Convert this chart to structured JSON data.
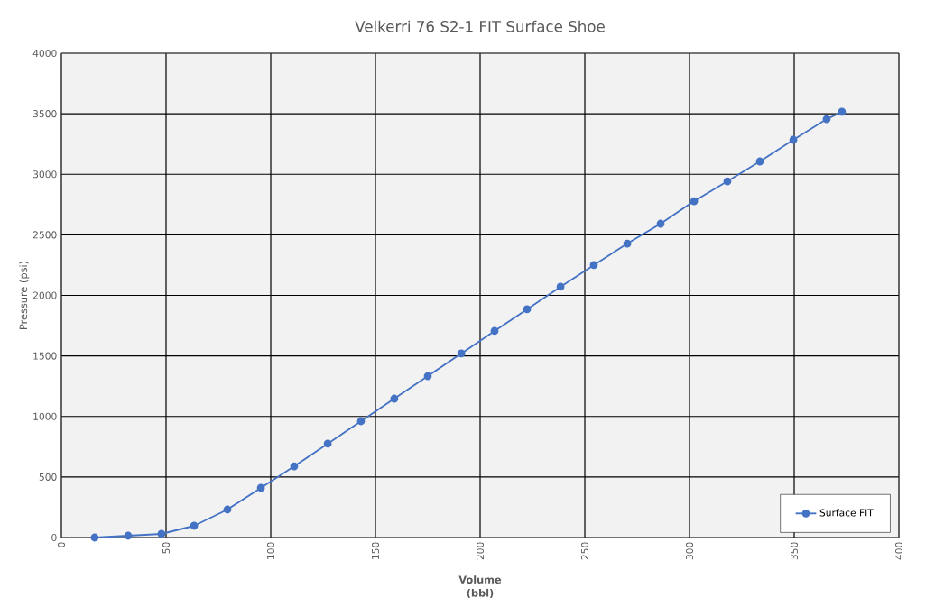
{
  "chart_data": {
    "type": "line",
    "title": "Velkerri 76 S2-1 FIT Surface Shoe",
    "xlabel": "Volume (bbl)",
    "ylabel": "Pressure (psi)",
    "x": [
      15.9,
      31.9,
      47.8,
      63.4,
      79.3,
      95.3,
      111.2,
      127.2,
      143.1,
      159,
      175,
      191,
      206.9,
      222.4,
      238.4,
      254.3,
      270.3,
      286.2,
      302.2,
      318.1,
      333.6,
      349.6,
      365.5,
      372.8
    ],
    "series": [
      {
        "name": "Surface FIT",
        "color": "#4472c4",
        "values": [
          0,
          15,
          30,
          97,
          231,
          410,
          588,
          775,
          961,
          1147,
          1333,
          1520,
          1706,
          1885,
          2071,
          2250,
          2428,
          2592,
          2778,
          2942,
          3106,
          3285,
          3456,
          3516
        ]
      }
    ],
    "xlim": [
      0,
      400
    ],
    "xticks": [
      0,
      50,
      100,
      150,
      200,
      250,
      300,
      350,
      400
    ],
    "ylim": [
      0,
      4000
    ],
    "yticks": [
      0,
      500,
      1000,
      1500,
      2000,
      2500,
      3000,
      3500,
      4000
    ],
    "grid": true,
    "legend": "bottom right",
    "marker": "circle",
    "line_style": "solid"
  }
}
